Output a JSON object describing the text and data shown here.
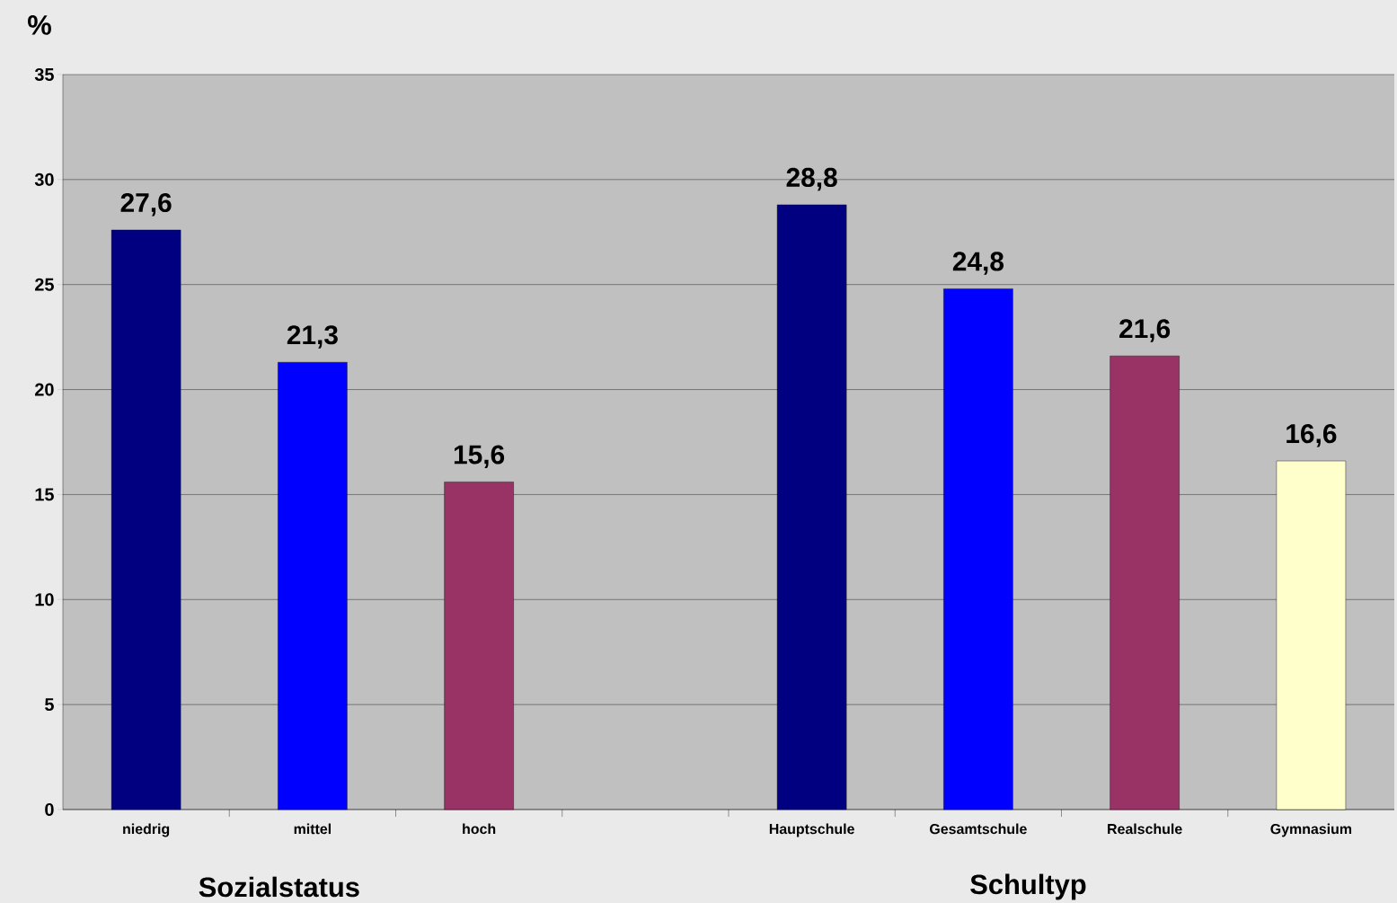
{
  "chart_data": {
    "type": "bar",
    "ylabel": "%",
    "categories": [
      "niedrig",
      "mittel",
      "hoch",
      null,
      "Hauptschule",
      "Gesamtschule",
      "Realschule",
      "Gymnasium"
    ],
    "values": [
      27.6,
      21.3,
      15.6,
      null,
      28.8,
      24.8,
      21.6,
      16.6
    ],
    "colors": [
      "#000080",
      "#0000ff",
      "#993366",
      null,
      "#000080",
      "#0000ff",
      "#993366",
      "#ffffcc"
    ],
    "value_labels": [
      "27,6",
      "21,3",
      "15,6",
      null,
      "28,8",
      "24,8",
      "21,6",
      "16,6"
    ],
    "ylim": [
      0,
      35
    ],
    "yticks": [
      0,
      5,
      10,
      15,
      20,
      25,
      30,
      35
    ],
    "grid": "y",
    "annotations": [
      "Sozialstatus",
      "Schultyp"
    ]
  }
}
